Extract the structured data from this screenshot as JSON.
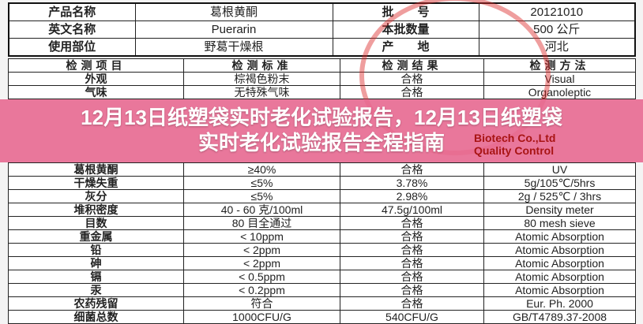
{
  "top_table": [
    [
      "产品名称",
      "葛根黄酮",
      "批　　号",
      "20121010"
    ],
    [
      "英文名称",
      "Puerarin",
      "本批数量",
      "500 公斤"
    ],
    [
      "使用部位",
      "野葛干燥根",
      "产　　地",
      "河北"
    ]
  ],
  "header": [
    "检测项目",
    "检测标准",
    "检测结果",
    "检测方法"
  ],
  "rows": [
    [
      "外观",
      "棕褐色粉末",
      "合格",
      "Visual"
    ],
    [
      "气味",
      "无特殊气味",
      "合格",
      "Organoleptic"
    ],
    [
      "葛根黄酮",
      "≥40%",
      "合格",
      "UV"
    ],
    [
      "干燥失重",
      "≤5%",
      "3.78%",
      "5g/105℃/5hrs"
    ],
    [
      "灰分",
      "≤5%",
      "2.98%",
      "2g / 525℃ / 3hrs"
    ],
    [
      "堆积密度",
      "40 - 60 克/100ml",
      "47.5g/100ml",
      "Density meter"
    ],
    [
      "目数",
      "80 目全通过",
      "合格",
      "80 mesh sieve"
    ],
    [
      "重金属",
      "< 10ppm",
      "合格",
      "Atomic Absorption"
    ],
    [
      "铅",
      "< 2ppm",
      "合格",
      "Atomic Absorption"
    ],
    [
      "砷",
      "< 2ppm",
      "合格",
      "Atomic Absorption"
    ],
    [
      "镉",
      "< 0.5ppm",
      "合格",
      "Atomic Absorption"
    ],
    [
      "汞",
      "< 0.2ppm",
      "合格",
      "Atomic Absorption"
    ],
    [
      "农药残留",
      "符合",
      "合格",
      "Eur. Ph. 2000"
    ],
    [
      "细菌总数",
      "1000CFU/G",
      "540CFU/G",
      "GB/T4789.37-2008"
    ]
  ],
  "stamp": {
    "text": "Biotech Co.,Ltd",
    "text2": "Quality Control",
    "color": "#dc2828"
  },
  "overlay": {
    "line1": "12月13日纸塑袋实时老化试验报告，12月13日纸塑袋",
    "line2": "实时老化试验报告全程指南",
    "color": "#e86991"
  }
}
